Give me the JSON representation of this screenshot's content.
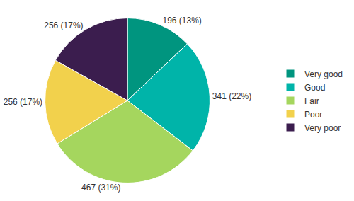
{
  "chart_data": {
    "type": "pie",
    "categories": [
      "Very good",
      "Good",
      "Fair",
      "Poor",
      "Very poor"
    ],
    "values": [
      196,
      341,
      467,
      256,
      256
    ],
    "value_labels": [
      "196 (13%)",
      "341 (22%)",
      "467 (31%)",
      "256 (17%)",
      "256 (17%)"
    ],
    "colors": [
      "#00957f",
      "#00b4a9",
      "#a5d65e",
      "#f2d14c",
      "#3b1d4e"
    ],
    "data_labels": true,
    "legend": "right"
  }
}
